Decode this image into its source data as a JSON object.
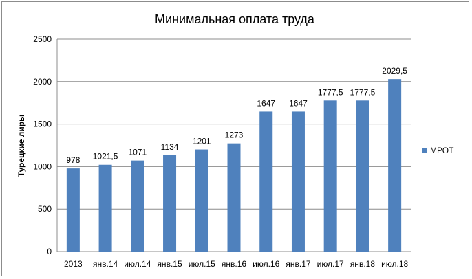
{
  "chart_data": {
    "type": "bar",
    "title": "Минимальная оплата труда",
    "xlabel": "",
    "ylabel": "Турецкие лиры",
    "categories": [
      "2013",
      "янв.14",
      "июл.14",
      "янв.15",
      "июл.15",
      "янв.16",
      "июл.16",
      "янв.17",
      "июл.17",
      "янв.18",
      "июл.18"
    ],
    "series": [
      {
        "name": "МРОТ",
        "values": [
          978,
          1021.5,
          1071,
          1134,
          1201,
          1273,
          1647,
          1647,
          1777.5,
          1777.5,
          2029.5
        ],
        "labels": [
          "978",
          "1021,5",
          "1071",
          "1134",
          "1201",
          "1273",
          "1647",
          "1647",
          "1777,5",
          "1777,5",
          "2029,5"
        ]
      }
    ],
    "ylim": [
      0,
      2500
    ],
    "yticks": [
      "0",
      "500",
      "1000",
      "1500",
      "2000",
      "2500"
    ],
    "grid": true,
    "legend": "right",
    "colors": {
      "bar": "#4f81bd",
      "grid": "#8c8c8c",
      "axis": "#8c8c8c"
    }
  }
}
